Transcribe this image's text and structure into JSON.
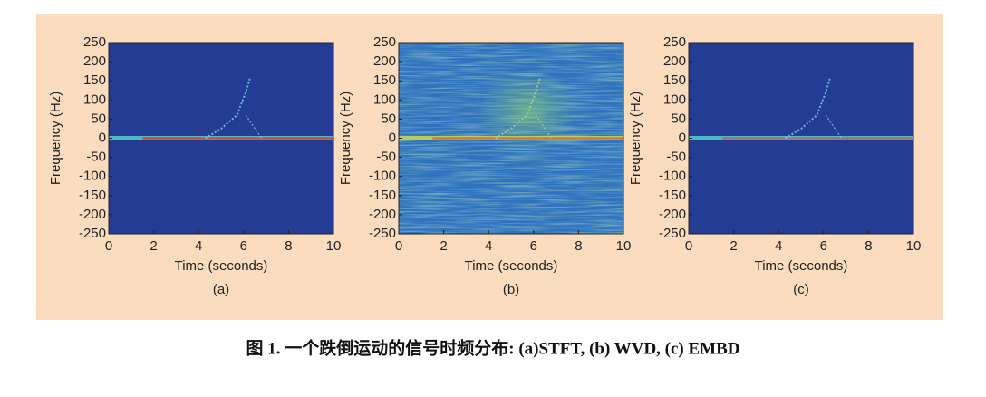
{
  "chart_data": [
    {
      "type": "spectrogram",
      "label": "(a)",
      "xlabel": "Time (seconds)",
      "ylabel": "Frequency (Hz)",
      "xlim": [
        0,
        10
      ],
      "xticks": [
        0,
        2,
        4,
        6,
        8,
        10
      ],
      "ylim": [
        -250,
        250
      ],
      "yticks": [
        250,
        200,
        150,
        100,
        50,
        0,
        -50,
        -100,
        -150,
        -200,
        -250
      ]
    },
    {
      "type": "spectrogram",
      "label": "(b)",
      "xlabel": "Time (seconds)",
      "ylabel": "Frequency (Hz)",
      "xlim": [
        0,
        10
      ],
      "xticks": [
        0,
        2,
        4,
        6,
        8,
        10
      ],
      "ylim": [
        -250,
        250
      ],
      "yticks": [
        250,
        200,
        150,
        100,
        50,
        0,
        -50,
        -100,
        -150,
        -200,
        -250
      ]
    },
    {
      "type": "spectrogram",
      "label": "(c)",
      "xlabel": "Time (seconds)",
      "ylabel": "Frequency (Hz)",
      "xlim": [
        0,
        10
      ],
      "xticks": [
        0,
        2,
        4,
        6,
        8,
        10
      ],
      "ylim": [
        -250,
        250
      ],
      "yticks": [
        250,
        200,
        150,
        100,
        50,
        0,
        -50,
        -100,
        -150,
        -200,
        -250
      ]
    }
  ],
  "caption": "图 1. 一个跌倒运动的信号时频分布: (a)STFT, (b) WVD, (c) EMBD"
}
